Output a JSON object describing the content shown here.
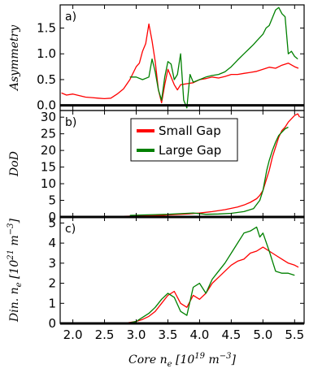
{
  "chart_data": {
    "type": "line",
    "x_range": [
      1.8,
      5.65
    ],
    "x_ticks": [
      "2.0",
      "2.5",
      "3.0",
      "3.5",
      "4.0",
      "4.5",
      "5.0",
      "5.5"
    ],
    "x_tick_values": [
      2.0,
      2.5,
      3.0,
      3.5,
      4.0,
      4.5,
      5.0,
      5.5
    ],
    "xlabel": "Core n_e [10^19 m^-3]",
    "xlabel_parts": {
      "main": "Core ",
      "var": "n",
      "sub": "e",
      "unit_open": " [10",
      "exp1": "19",
      "unit_mid": " m",
      "exp2": "−3",
      "unit_close": "]"
    },
    "legend": {
      "placement": "top-center of panel b",
      "entries": [
        {
          "label": "Small Gap",
          "color": "#ff0000"
        },
        {
          "label": "Large Gap",
          "color": "#008000"
        }
      ]
    },
    "panels": [
      {
        "id": "a",
        "panel_label": "a)",
        "ylabel": "Asymmetry",
        "ylim": [
          -0.1,
          1.95
        ],
        "yticks": [
          "0.0",
          "0.5",
          "1.0",
          "1.5"
        ],
        "ytick_values": [
          0.0,
          0.5,
          1.0,
          1.5
        ],
        "hline": 0.0,
        "series": [
          {
            "name": "Small Gap",
            "color": "#ff0000",
            "x": [
              1.82,
              1.9,
              2.0,
              2.1,
              2.2,
              2.3,
              2.4,
              2.5,
              2.6,
              2.7,
              2.8,
              2.9,
              3.0,
              3.05,
              3.1,
              3.15,
              3.2,
              3.25,
              3.3,
              3.35,
              3.4,
              3.45,
              3.5,
              3.55,
              3.6,
              3.65,
              3.7,
              3.8,
              3.9,
              4.0,
              4.1,
              4.2,
              4.3,
              4.4,
              4.5,
              4.6,
              4.7,
              4.8,
              4.9,
              5.0,
              5.1,
              5.2,
              5.3,
              5.4,
              5.5,
              5.56
            ],
            "y": [
              0.24,
              0.2,
              0.22,
              0.19,
              0.16,
              0.15,
              0.14,
              0.13,
              0.14,
              0.22,
              0.32,
              0.5,
              0.75,
              0.82,
              1.05,
              1.2,
              1.58,
              1.25,
              0.85,
              0.3,
              0.05,
              0.4,
              0.7,
              0.55,
              0.4,
              0.3,
              0.4,
              0.42,
              0.44,
              0.5,
              0.52,
              0.55,
              0.53,
              0.56,
              0.6,
              0.6,
              0.62,
              0.64,
              0.66,
              0.7,
              0.74,
              0.72,
              0.78,
              0.82,
              0.75,
              0.72
            ]
          },
          {
            "name": "Large Gap",
            "color": "#008000",
            "x": [
              2.9,
              3.0,
              3.1,
              3.2,
              3.25,
              3.3,
              3.35,
              3.4,
              3.45,
              3.5,
              3.55,
              3.6,
              3.65,
              3.7,
              3.75,
              3.8,
              3.85,
              3.9,
              4.0,
              4.1,
              4.2,
              4.3,
              4.4,
              4.5,
              4.6,
              4.7,
              4.8,
              4.85,
              4.9,
              5.0,
              5.05,
              5.1,
              5.15,
              5.2,
              5.25,
              5.3,
              5.35,
              5.4,
              5.45,
              5.5,
              5.55
            ],
            "y": [
              0.55,
              0.55,
              0.5,
              0.55,
              0.9,
              0.65,
              0.3,
              0.1,
              0.55,
              0.85,
              0.8,
              0.5,
              0.6,
              1.0,
              0.1,
              -0.05,
              0.6,
              0.45,
              0.5,
              0.55,
              0.58,
              0.6,
              0.65,
              0.75,
              0.88,
              1.0,
              1.12,
              1.18,
              1.25,
              1.38,
              1.5,
              1.55,
              1.7,
              1.85,
              1.9,
              1.78,
              1.72,
              1.0,
              1.05,
              0.95,
              0.9
            ]
          }
        ]
      },
      {
        "id": "b",
        "panel_label": "b)",
        "ylabel": "DoD",
        "ylim": [
          0,
          32
        ],
        "yticks": [
          "0",
          "5",
          "10",
          "15",
          "20",
          "25",
          "30"
        ],
        "ytick_values": [
          0,
          5,
          10,
          15,
          20,
          25,
          30
        ],
        "hline": 0.0,
        "series": [
          {
            "name": "Small Gap",
            "color": "#ff0000",
            "x": [
              2.8,
              3.0,
              3.2,
              3.4,
              3.6,
              3.8,
              4.0,
              4.2,
              4.4,
              4.6,
              4.7,
              4.8,
              4.9,
              4.95,
              5.0,
              5.05,
              5.1,
              5.15,
              5.2,
              5.25,
              5.3,
              5.35,
              5.4,
              5.45,
              5.5,
              5.55,
              5.58
            ],
            "y": [
              0.2,
              0.3,
              0.4,
              0.5,
              0.7,
              0.9,
              1.2,
              1.6,
              2.2,
              3.0,
              3.6,
              4.4,
              5.5,
              6.5,
              8.0,
              11.0,
              14.0,
              18.0,
              21.0,
              24.0,
              26.0,
              27.0,
              28.5,
              29.5,
              30.5,
              31.0,
              30.0
            ]
          },
          {
            "name": "Large Gap",
            "color": "#008000",
            "x": [
              2.9,
              3.1,
              3.3,
              3.5,
              3.7,
              3.9,
              4.1,
              4.3,
              4.5,
              4.7,
              4.85,
              4.95,
              5.0,
              5.03,
              5.06,
              5.1,
              5.15,
              5.2,
              5.25,
              5.3,
              5.35,
              5.4
            ],
            "y": [
              0.5,
              0.6,
              0.7,
              0.8,
              1.0,
              1.2,
              0.8,
              0.9,
              1.1,
              1.6,
              2.5,
              5.0,
              8.0,
              11.0,
              14.0,
              17.0,
              20.0,
              22.5,
              24.5,
              25.5,
              26.5,
              27.0
            ]
          }
        ]
      },
      {
        "id": "c",
        "panel_label": "c)",
        "ylabel": "Din. n_e [10^21 m^-3]",
        "ylabel_parts": {
          "main": "Din. ",
          "var": "n",
          "sub": "e",
          "unit_open": " [10",
          "exp1": "21",
          "unit_mid": " m",
          "exp2": "−3",
          "unit_close": "]"
        },
        "ylim": [
          0,
          5.3
        ],
        "yticks": [
          "0",
          "1",
          "2",
          "3",
          "4",
          "5"
        ],
        "ytick_values": [
          0,
          1,
          2,
          3,
          4,
          5
        ],
        "hline": 0.0,
        "series": [
          {
            "name": "Small Gap",
            "color": "#ff0000",
            "x": [
              2.8,
              3.0,
              3.1,
              3.2,
              3.3,
              3.4,
              3.5,
              3.6,
              3.7,
              3.8,
              3.9,
              4.0,
              4.1,
              4.2,
              4.3,
              4.4,
              4.5,
              4.6,
              4.7,
              4.8,
              4.9,
              5.0,
              5.1,
              5.2,
              5.3,
              5.4,
              5.5,
              5.56
            ],
            "y": [
              0.0,
              0.1,
              0.2,
              0.35,
              0.6,
              1.0,
              1.4,
              1.6,
              1.0,
              0.8,
              1.4,
              1.2,
              1.5,
              2.0,
              2.3,
              2.6,
              2.9,
              3.1,
              3.2,
              3.5,
              3.6,
              3.8,
              3.6,
              3.4,
              3.2,
              3.0,
              2.9,
              2.8
            ]
          },
          {
            "name": "Large Gap",
            "color": "#008000",
            "x": [
              2.85,
              3.0,
              3.1,
              3.2,
              3.3,
              3.4,
              3.5,
              3.6,
              3.7,
              3.8,
              3.9,
              4.0,
              4.1,
              4.2,
              4.3,
              4.4,
              4.5,
              4.6,
              4.7,
              4.8,
              4.9,
              4.95,
              5.0,
              5.1,
              5.2,
              5.3,
              5.4,
              5.5
            ],
            "y": [
              0.0,
              0.1,
              0.3,
              0.5,
              0.8,
              1.2,
              1.5,
              1.3,
              0.6,
              0.4,
              1.8,
              2.0,
              1.5,
              2.2,
              2.6,
              3.0,
              3.5,
              4.0,
              4.5,
              4.6,
              4.8,
              4.3,
              4.5,
              3.6,
              2.6,
              2.5,
              2.5,
              2.4
            ]
          }
        ]
      }
    ]
  }
}
